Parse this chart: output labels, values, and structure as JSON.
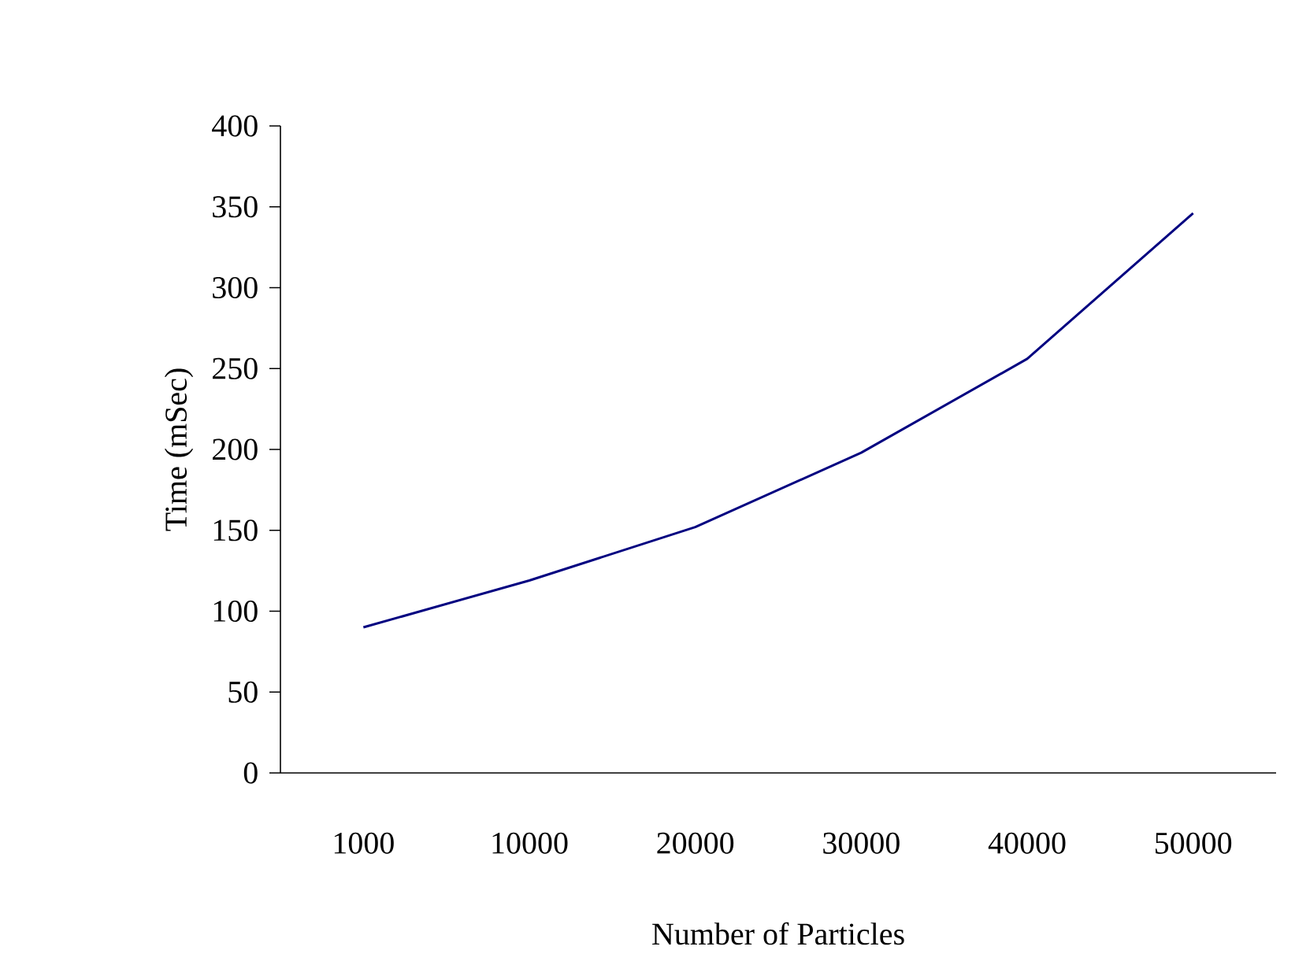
{
  "chart_data": {
    "type": "line",
    "xlabel": "Number of Particles",
    "ylabel": "Time (mSec)",
    "categories": [
      "1000",
      "10000",
      "20000",
      "30000",
      "40000",
      "50000"
    ],
    "series": [
      {
        "color": "#000080",
        "values": [
          90,
          119,
          152,
          198,
          256,
          346
        ]
      }
    ],
    "ylim": [
      0,
      400
    ],
    "yticks": [
      0,
      50,
      100,
      150,
      200,
      250,
      300,
      350,
      400
    ],
    "marker": "none",
    "line_style": "solid"
  }
}
